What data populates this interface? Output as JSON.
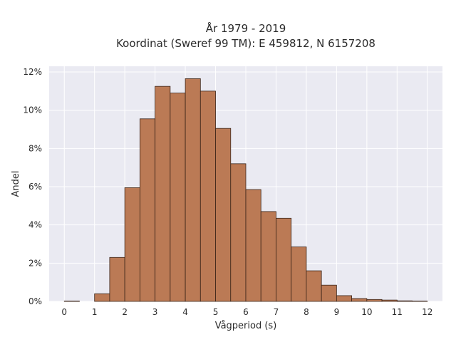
{
  "chart_data": {
    "type": "bar",
    "title_lines": [
      "År 1979 - 2019",
      "Koordinat (Sweref 99 TM): E 459812, N 6157208"
    ],
    "xlabel": "Vågperiod (s)",
    "ylabel": "Andel",
    "xlim": [
      -0.5,
      12.5
    ],
    "ylim": [
      0,
      12.3
    ],
    "x_ticks": [
      0,
      1,
      2,
      3,
      4,
      5,
      6,
      7,
      8,
      9,
      10,
      11,
      12
    ],
    "x_tick_labels": [
      "0",
      "1",
      "2",
      "3",
      "4",
      "5",
      "6",
      "7",
      "8",
      "9",
      "10",
      "11",
      "12"
    ],
    "y_ticks": [
      0,
      2,
      4,
      6,
      8,
      10,
      12
    ],
    "y_tick_labels": [
      "0%",
      "2%",
      "4%",
      "6%",
      "8%",
      "10%",
      "12%"
    ],
    "bin_width": 0.5,
    "bin_starts": [
      0,
      0.5,
      1,
      1.5,
      2,
      2.5,
      3,
      3.5,
      4,
      4.5,
      5,
      5.5,
      6,
      6.5,
      7,
      7.5,
      8,
      8.5,
      9,
      9.5,
      10,
      10.5,
      11,
      11.5
    ],
    "values": [
      0.02,
      0,
      0.4,
      2.3,
      5.95,
      9.55,
      11.25,
      10.9,
      11.65,
      11.0,
      9.05,
      7.2,
      5.85,
      4.7,
      4.35,
      2.85,
      1.6,
      0.85,
      0.3,
      0.15,
      0.1,
      0.07,
      0.03,
      0.02
    ],
    "grid": true,
    "colors": {
      "bar_fill": "#bb7a55",
      "bar_edge": "#3a2418",
      "plot_background": "#eaeaf2",
      "grid": "#ffffff"
    }
  }
}
